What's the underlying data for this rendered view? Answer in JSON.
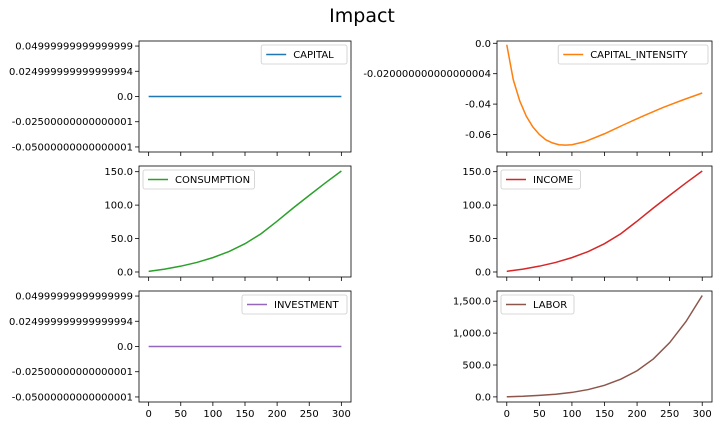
{
  "figure_title": "Impact",
  "chart_data": [
    {
      "type": "line",
      "series": [
        {
          "name": "CAPITAL",
          "color": "#1f77b4",
          "x": [
            0,
            300
          ],
          "y": [
            0,
            0
          ]
        }
      ],
      "ylim": [
        -0.055,
        0.055
      ],
      "yticks": [
        -0.05000000000000001,
        -0.02500000000000001,
        0.0,
        0.024999999999999994,
        0.04999999999999999
      ],
      "ytick_labels": [
        "-0.05000000000000001",
        "-0.02500000000000001",
        "0.0",
        "0.024999999999999994",
        "0.04999999999999999"
      ],
      "xticks": [
        0,
        50,
        100,
        150,
        200,
        250,
        300
      ],
      "xtick_labels": [
        "",
        "",
        "",
        "",
        "",
        "",
        ""
      ],
      "legend_position": "upper right"
    },
    {
      "type": "line",
      "series": [
        {
          "name": "CAPITAL_INTENSITY",
          "color": "#ff7f0e",
          "x": [
            0,
            10,
            20,
            30,
            40,
            50,
            60,
            70,
            80,
            90,
            100,
            120,
            150,
            180,
            210,
            240,
            270,
            300
          ],
          "y": [
            -0.001,
            -0.024,
            -0.038,
            -0.048,
            -0.055,
            -0.06,
            -0.0635,
            -0.0655,
            -0.0667,
            -0.067,
            -0.0667,
            -0.0647,
            -0.0595,
            -0.0535,
            -0.0477,
            -0.0422,
            -0.0373,
            -0.0327
          ]
        }
      ],
      "ylim": [
        -0.0715,
        0.0015
      ],
      "yticks": [
        -0.06,
        -0.04,
        -0.020000000000000004,
        0.0
      ],
      "ytick_labels": [
        "-0.06",
        "-0.04",
        "-0.020000000000000004",
        "0.0"
      ],
      "xticks": [
        0,
        50,
        100,
        150,
        200,
        250,
        300
      ],
      "xtick_labels": [
        "",
        "",
        "",
        "",
        "",
        "",
        ""
      ],
      "legend_position": "upper right"
    },
    {
      "type": "line",
      "series": [
        {
          "name": "CONSUMPTION",
          "color": "#2ca02c",
          "x": [
            0,
            25,
            50,
            75,
            100,
            125,
            150,
            175,
            200,
            225,
            250,
            275,
            300
          ],
          "y": [
            1,
            4.3,
            8.7,
            14.3,
            21.5,
            30.6,
            42.3,
            57.2,
            76.0,
            95.7,
            114.6,
            133.2,
            151
          ]
        }
      ],
      "ylim": [
        -7.5,
        158.5
      ],
      "yticks": [
        0,
        50,
        100,
        150
      ],
      "ytick_labels": [
        "0.0",
        "50.0",
        "100.0",
        "150.0"
      ],
      "xticks": [
        0,
        50,
        100,
        150,
        200,
        250,
        300
      ],
      "xtick_labels": [
        "",
        "",
        "",
        "",
        "",
        "",
        ""
      ],
      "legend_position": "upper left"
    },
    {
      "type": "line",
      "series": [
        {
          "name": "INCOME",
          "color": "#d62728",
          "x": [
            0,
            25,
            50,
            75,
            100,
            125,
            150,
            175,
            200,
            225,
            250,
            275,
            300
          ],
          "y": [
            1,
            4.3,
            8.7,
            14.3,
            21.5,
            30.6,
            42.3,
            57.2,
            76.0,
            95.7,
            114.6,
            133.2,
            151
          ]
        }
      ],
      "ylim": [
        -7.5,
        158.5
      ],
      "yticks": [
        0,
        50,
        100,
        150
      ],
      "ytick_labels": [
        "0.0",
        "50.0",
        "100.0",
        "150.0"
      ],
      "xticks": [
        0,
        50,
        100,
        150,
        200,
        250,
        300
      ],
      "xtick_labels": [
        "",
        "",
        "",
        "",
        "",
        "",
        ""
      ],
      "legend_position": "upper left"
    },
    {
      "type": "line",
      "series": [
        {
          "name": "INVESTMENT",
          "color": "#9467bd",
          "x": [
            0,
            300
          ],
          "y": [
            0,
            0
          ]
        }
      ],
      "ylim": [
        -0.055,
        0.055
      ],
      "yticks": [
        -0.05000000000000001,
        -0.02500000000000001,
        0.0,
        0.024999999999999994,
        0.04999999999999999
      ],
      "ytick_labels": [
        "-0.05000000000000001",
        "-0.02500000000000001",
        "0.0",
        "0.024999999999999994",
        "0.04999999999999999"
      ],
      "xticks": [
        0,
        50,
        100,
        150,
        200,
        250,
        300
      ],
      "xtick_labels": [
        "0",
        "50",
        "100",
        "150",
        "200",
        "250",
        "300"
      ],
      "legend_position": "upper right"
    },
    {
      "type": "line",
      "series": [
        {
          "name": "LABOR",
          "color": "#8c564b",
          "x": [
            0,
            25,
            50,
            75,
            100,
            125,
            150,
            175,
            200,
            225,
            250,
            275,
            300
          ],
          "y": [
            2,
            10,
            24,
            42,
            70,
            115,
            182,
            278,
            410,
            595,
            850,
            1180,
            1590
          ]
        }
      ],
      "ylim": [
        -80,
        1660
      ],
      "yticks": [
        0,
        500,
        1000,
        1500
      ],
      "ytick_labels": [
        "0.0",
        "500.0",
        "1,000.0",
        "1,500.0"
      ],
      "xticks": [
        0,
        50,
        100,
        150,
        200,
        250,
        300
      ],
      "xtick_labels": [
        "0",
        "50",
        "100",
        "150",
        "200",
        "250",
        "300"
      ],
      "legend_position": "upper left"
    }
  ]
}
